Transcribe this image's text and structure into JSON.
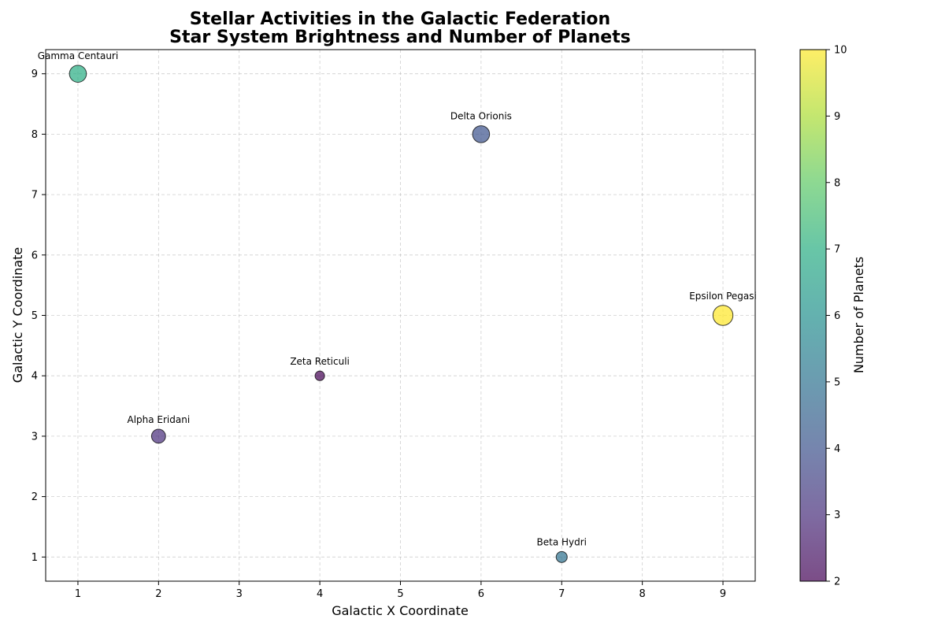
{
  "chart_data": {
    "type": "scatter",
    "title_line1": "Stellar Activities in the Galactic Federation",
    "title_line2": "Star System Brightness and Number of Planets",
    "xlabel": "Galactic X Coordinate",
    "ylabel": "Galactic Y Coordinate",
    "xlim": [
      0.6,
      9.4
    ],
    "ylim": [
      0.6,
      9.4
    ],
    "xticks": [
      1,
      2,
      3,
      4,
      5,
      6,
      7,
      8,
      9
    ],
    "yticks": [
      1,
      2,
      3,
      4,
      5,
      6,
      7,
      8,
      9
    ],
    "grid": true,
    "size_encodes": "brightness",
    "color_encodes": "planets",
    "points": [
      {
        "name": "Alpha Eridani",
        "x": 2,
        "y": 3,
        "planets": 3,
        "brightness": 3
      },
      {
        "name": "Beta Hydri",
        "x": 7,
        "y": 1,
        "planets": 5,
        "brightness": 2
      },
      {
        "name": "Gamma Centauri",
        "x": 1,
        "y": 9,
        "planets": 7,
        "brightness": 4
      },
      {
        "name": "Delta Orionis",
        "x": 6,
        "y": 8,
        "planets": 4,
        "brightness": 4
      },
      {
        "name": "Epsilon Pegasi",
        "x": 9,
        "y": 5,
        "planets": 10,
        "brightness": 5
      },
      {
        "name": "Zeta Reticuli",
        "x": 4,
        "y": 4,
        "planets": 2,
        "brightness": 1.5
      }
    ],
    "colorbar": {
      "label": "Number of Planets",
      "min": 2,
      "max": 10,
      "ticks": [
        2,
        3,
        4,
        5,
        6,
        7,
        8,
        9,
        10
      ],
      "colormap": "viridis"
    }
  }
}
